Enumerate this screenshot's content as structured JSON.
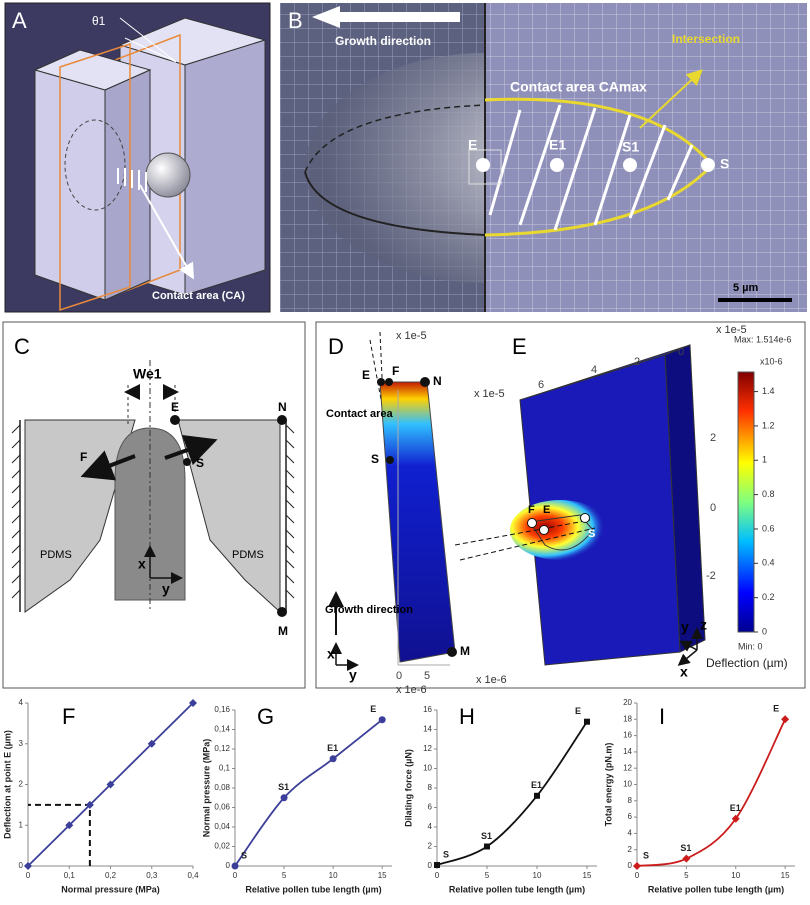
{
  "panels": {
    "A": {
      "label": "A",
      "theta": "θ1",
      "contact": "Contact area (CA)"
    },
    "B": {
      "label": "B",
      "growth": "Growth direction",
      "intersection": "Intersection",
      "contact": "Contact area CAmax",
      "points": [
        "E",
        "E1",
        "S1",
        "S"
      ],
      "scale": "5 µm"
    },
    "C": {
      "label": "C",
      "width": "We1",
      "points": [
        "E",
        "N",
        "F",
        "S",
        "M"
      ],
      "material": [
        "PDMS",
        "PDMS"
      ],
      "axes": [
        "x",
        "y"
      ]
    },
    "D": {
      "label": "D",
      "scale_top": "x 1e-5",
      "points": [
        "E",
        "F",
        "N",
        "S",
        "M"
      ],
      "contact": "Contact area",
      "growth": "Growth direction",
      "axes": [
        "x",
        "y"
      ],
      "ticks": [
        "0",
        "5"
      ],
      "scale_bottom": "x 1e-6"
    },
    "E": {
      "label": "E",
      "scale_top": "x 1e-5",
      "scale_left": "x 1e-5",
      "scale_bottom": "x 1e-6",
      "top_ticks": [
        "6",
        "4",
        "2",
        "0"
      ],
      "side_ticks": [
        "2",
        "0",
        "-2"
      ],
      "points": [
        "F",
        "E",
        "S"
      ],
      "axes": [
        "y",
        "z",
        "x"
      ],
      "max": "Max: 1.514e-6",
      "exponent": "x10-6",
      "colorbar_ticks": [
        1.4,
        1.2,
        1,
        0.8,
        0.6,
        0.4,
        0.2,
        0
      ],
      "min": "Min: 0",
      "colorbar_title": "Deflection (µm)"
    }
  },
  "chart_data": [
    {
      "type": "line",
      "panel": "F",
      "xlabel": "Normal pressure (MPa)",
      "ylabel": "Deflection at point E (µm)",
      "x": [
        0,
        0.1,
        0.15,
        0.2,
        0.3,
        0.4
      ],
      "values": [
        0,
        1,
        1.5,
        2,
        3,
        4
      ],
      "color": "#3b3f99",
      "marker": "diamond",
      "smooth": false,
      "reference_point": [
        0.15,
        1.5
      ],
      "xlim": [
        0,
        0.4
      ],
      "xticks": [
        0,
        {
          "value": 0.1,
          "label": "0,1"
        },
        {
          "value": 0.2,
          "label": "0,2"
        },
        {
          "value": 0.3,
          "label": "0,3"
        },
        {
          "value": 0.4,
          "label": "0,4"
        }
      ],
      "ylim": [
        0,
        4
      ],
      "yticks": [
        0,
        1,
        2,
        3,
        4
      ]
    },
    {
      "type": "line",
      "panel": "G",
      "xlabel": "Relative pollen tube length (µm)",
      "ylabel": "Normal pressure (MPa)",
      "x": [
        0,
        5,
        10,
        15
      ],
      "values": [
        0,
        0.07,
        0.11,
        0.15
      ],
      "point_labels": [
        "S",
        "S1",
        "E1",
        "E"
      ],
      "color": "#3b3f99",
      "marker": "circle",
      "smooth": true,
      "xlim": [
        0,
        16
      ],
      "xticks": [
        0,
        5,
        10,
        15
      ],
      "ylim": [
        0,
        0.16
      ],
      "yticks": [
        0,
        {
          "value": 0.02,
          "label": "0,02"
        },
        {
          "value": 0.04,
          "label": "0,04"
        },
        {
          "value": 0.06,
          "label": "0,06"
        },
        {
          "value": 0.08,
          "label": "0,08"
        },
        {
          "value": 0.1,
          "label": "0,1"
        },
        {
          "value": 0.12,
          "label": "0,12"
        },
        {
          "value": 0.14,
          "label": "0,14"
        },
        {
          "value": 0.16,
          "label": "0,16"
        }
      ]
    },
    {
      "type": "line",
      "panel": "H",
      "xlabel": "Relative pollen tube length (µm)",
      "ylabel": "Dilating force (µN)",
      "x": [
        0,
        5,
        10,
        15
      ],
      "values": [
        0.1,
        2,
        7.2,
        14.8
      ],
      "point_labels": [
        "S",
        "S1",
        "E1",
        "E"
      ],
      "color": "#111111",
      "marker": "square",
      "smooth": true,
      "xlim": [
        0,
        16
      ],
      "xticks": [
        0,
        5,
        10,
        15
      ],
      "ylim": [
        0,
        16
      ],
      "yticks": [
        0,
        2,
        4,
        6,
        8,
        10,
        12,
        14,
        16
      ]
    },
    {
      "type": "line",
      "panel": "I",
      "xlabel": "Relative pollen tube length (µm)",
      "ylabel": "Total energy (pN.m)",
      "x": [
        0,
        5,
        10,
        15
      ],
      "values": [
        0,
        0.9,
        5.8,
        18
      ],
      "point_labels": [
        "S",
        "S1",
        "E1",
        "E"
      ],
      "color": "#cc1b1b",
      "marker": "diamond",
      "smooth": true,
      "xlim": [
        0,
        16
      ],
      "xticks": [
        0,
        5,
        10,
        15
      ],
      "ylim": [
        0,
        20
      ],
      "yticks": [
        0,
        2,
        4,
        6,
        8,
        10,
        12,
        14,
        16,
        18,
        20
      ]
    }
  ]
}
